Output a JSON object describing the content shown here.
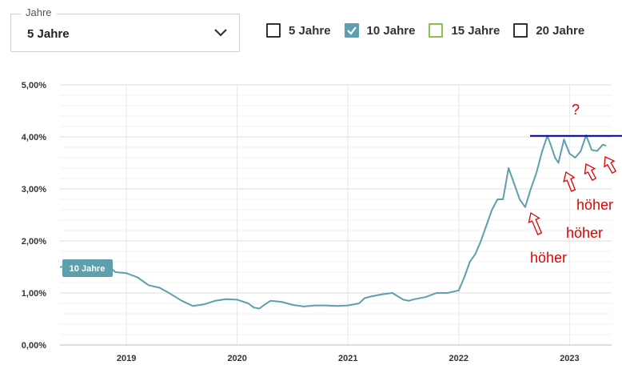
{
  "dropdown": {
    "legend": "Jahre",
    "value": "5 Jahre",
    "icon": "chevron-down-icon"
  },
  "checkboxes": [
    {
      "label": "5 Jahre",
      "checked": false,
      "color": "#333333"
    },
    {
      "label": "10 Jahre",
      "checked": true,
      "color": "#5e9fad"
    },
    {
      "label": "15 Jahre",
      "checked": false,
      "color": "#8cc04f"
    },
    {
      "label": "20 Jahre",
      "checked": false,
      "color": "#333333"
    }
  ],
  "colors": {
    "series": "#5e9fad",
    "grid": "#e4e4e4",
    "annotation_red": "#e00000",
    "annotation_blue": "#0000aa"
  },
  "chart_data": {
    "type": "line",
    "title": "",
    "xlabel": "",
    "ylabel": "",
    "ylim": [
      0,
      5
    ],
    "xlim": [
      2018.4,
      2023.38
    ],
    "y_ticks": [
      "0,00%",
      "1,00%",
      "2,00%",
      "3,00%",
      "4,00%",
      "5,00%"
    ],
    "x_ticks": [
      {
        "value": 2019,
        "label": "2019"
      },
      {
        "value": 2020,
        "label": "2020"
      },
      {
        "value": 2021,
        "label": "2021"
      },
      {
        "value": 2022,
        "label": "2022"
      },
      {
        "value": 2023,
        "label": "2023"
      }
    ],
    "grid": true,
    "series": [
      {
        "name": "10 Jahre",
        "x": [
          2018.4,
          2018.5,
          2018.6,
          2018.7,
          2018.8,
          2018.85,
          2018.9,
          2019.0,
          2019.1,
          2019.2,
          2019.3,
          2019.4,
          2019.5,
          2019.6,
          2019.7,
          2019.8,
          2019.9,
          2020.0,
          2020.1,
          2020.15,
          2020.2,
          2020.25,
          2020.3,
          2020.4,
          2020.5,
          2020.6,
          2020.7,
          2020.8,
          2020.9,
          2021.0,
          2021.1,
          2021.15,
          2021.2,
          2021.3,
          2021.4,
          2021.5,
          2021.55,
          2021.6,
          2021.7,
          2021.8,
          2021.9,
          2022.0,
          2022.05,
          2022.1,
          2022.15,
          2022.2,
          2022.3,
          2022.35,
          2022.4,
          2022.45,
          2022.5,
          2022.55,
          2022.6,
          2022.65,
          2022.7,
          2022.75,
          2022.8,
          2022.83,
          2022.87,
          2022.9,
          2022.95,
          2023.0,
          2023.05,
          2023.1,
          2023.15,
          2023.2,
          2023.25,
          2023.3,
          2023.33
        ],
        "values": [
          1.5,
          1.5,
          1.5,
          1.48,
          1.45,
          1.5,
          1.4,
          1.38,
          1.3,
          1.15,
          1.1,
          0.98,
          0.85,
          0.75,
          0.78,
          0.85,
          0.88,
          0.87,
          0.8,
          0.72,
          0.7,
          0.78,
          0.85,
          0.83,
          0.77,
          0.74,
          0.76,
          0.76,
          0.75,
          0.76,
          0.8,
          0.9,
          0.93,
          0.97,
          1.0,
          0.87,
          0.85,
          0.88,
          0.92,
          1.0,
          1.0,
          1.05,
          1.3,
          1.6,
          1.75,
          2.0,
          2.6,
          2.8,
          2.8,
          3.4,
          3.1,
          2.8,
          2.65,
          3.0,
          3.3,
          3.7,
          4.02,
          3.85,
          3.6,
          3.5,
          3.95,
          3.68,
          3.6,
          3.72,
          4.03,
          3.75,
          3.73,
          3.85,
          3.83
        ]
      }
    ],
    "series_label": "10 Jahre",
    "annotations": [
      {
        "text": "?"
      },
      {
        "text": "höher"
      },
      {
        "text": "höher"
      },
      {
        "text": "höher"
      }
    ],
    "reference_line_value": 4.02
  }
}
